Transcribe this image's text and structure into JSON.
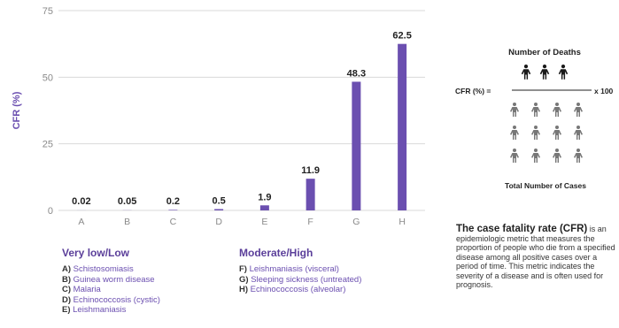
{
  "chart_data": {
    "type": "bar",
    "categories": [
      "A",
      "B",
      "C",
      "D",
      "E",
      "F",
      "G",
      "H"
    ],
    "values": [
      0.02,
      0.05,
      0.2,
      0.5,
      1.9,
      11.9,
      48.3,
      62.5
    ],
    "value_labels": [
      "0.02",
      "0.05",
      "0.2",
      "0.5",
      "1.9",
      "11.9",
      "48.3",
      "62.5"
    ],
    "ylabel": "CFR (%)",
    "ylim": [
      0,
      75
    ],
    "yticks": [
      0,
      25,
      50,
      75
    ],
    "grid": true,
    "bar_color": "#6b4fb0"
  },
  "legend": {
    "low": {
      "title": "Very low/Low",
      "items": [
        {
          "key": "A)",
          "label": "Schistosomiasis"
        },
        {
          "key": "B)",
          "label": "Guinea worm disease"
        },
        {
          "key": "C)",
          "label": "Malaria"
        },
        {
          "key": "D)",
          "label": "Echinococcosis (cystic)"
        },
        {
          "key": "E)",
          "label": "Leishmaniasis"
        }
      ]
    },
    "high": {
      "title": "Moderate/High",
      "items": [
        {
          "key": "F)",
          "label": "Leishmaniasis (visceral)"
        },
        {
          "key": "G)",
          "label": "Sleeping sickness (untreated)"
        },
        {
          "key": "H)",
          "label": "Echinococcosis (alveolar)"
        }
      ]
    }
  },
  "formula": {
    "numerator": "Number of Deaths",
    "lhs": "CFR (%) =",
    "multiplier": "x 100",
    "denominator": "Total Number of Cases",
    "icon": "person-icon"
  },
  "definition": {
    "lead": "The case fatality rate (CFR)",
    "text": " is an epidemiologic metric that measures the proportion of people who die from a specified disease among all positive cases over a period of time. This metric indicates the severity of a disease and is often used for prognosis."
  },
  "colors": {
    "accent": "#6b4fb0",
    "grid": "#d9d9d9",
    "axis_text": "#8a8a8a"
  }
}
